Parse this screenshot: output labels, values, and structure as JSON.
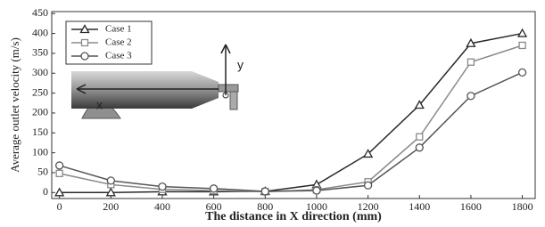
{
  "chart_data": {
    "type": "line",
    "x_label": "The distance in X direction (mm)",
    "y_label": "Average outlet velocity (m/s)",
    "x": [
      0,
      200,
      400,
      600,
      800,
      1000,
      1200,
      1400,
      1600,
      1800
    ],
    "series": [
      {
        "name": "Case 1",
        "color": "#2a2a2a",
        "marker": "triangle",
        "values": [
          0,
          0,
          2,
          2,
          3,
          20,
          97,
          220,
          375,
          400
        ]
      },
      {
        "name": "Case 2",
        "color": "#8a8a8a",
        "marker": "square",
        "values": [
          48,
          20,
          8,
          5,
          2,
          7,
          27,
          140,
          328,
          370
        ]
      },
      {
        "name": "Case 3",
        "color": "#555555",
        "marker": "circle",
        "values": [
          68,
          30,
          15,
          10,
          3,
          5,
          18,
          113,
          243,
          302
        ]
      }
    ],
    "xlim": [
      -30,
      1850
    ],
    "ylim": [
      -15,
      455
    ],
    "xticks": [
      0,
      200,
      400,
      600,
      800,
      1000,
      1200,
      1400,
      1600,
      1800
    ],
    "yticks": [
      0,
      50,
      100,
      150,
      200,
      250,
      300,
      350,
      400,
      450
    ],
    "legend": "upper-left",
    "annotations": [
      "y",
      "x"
    ]
  }
}
